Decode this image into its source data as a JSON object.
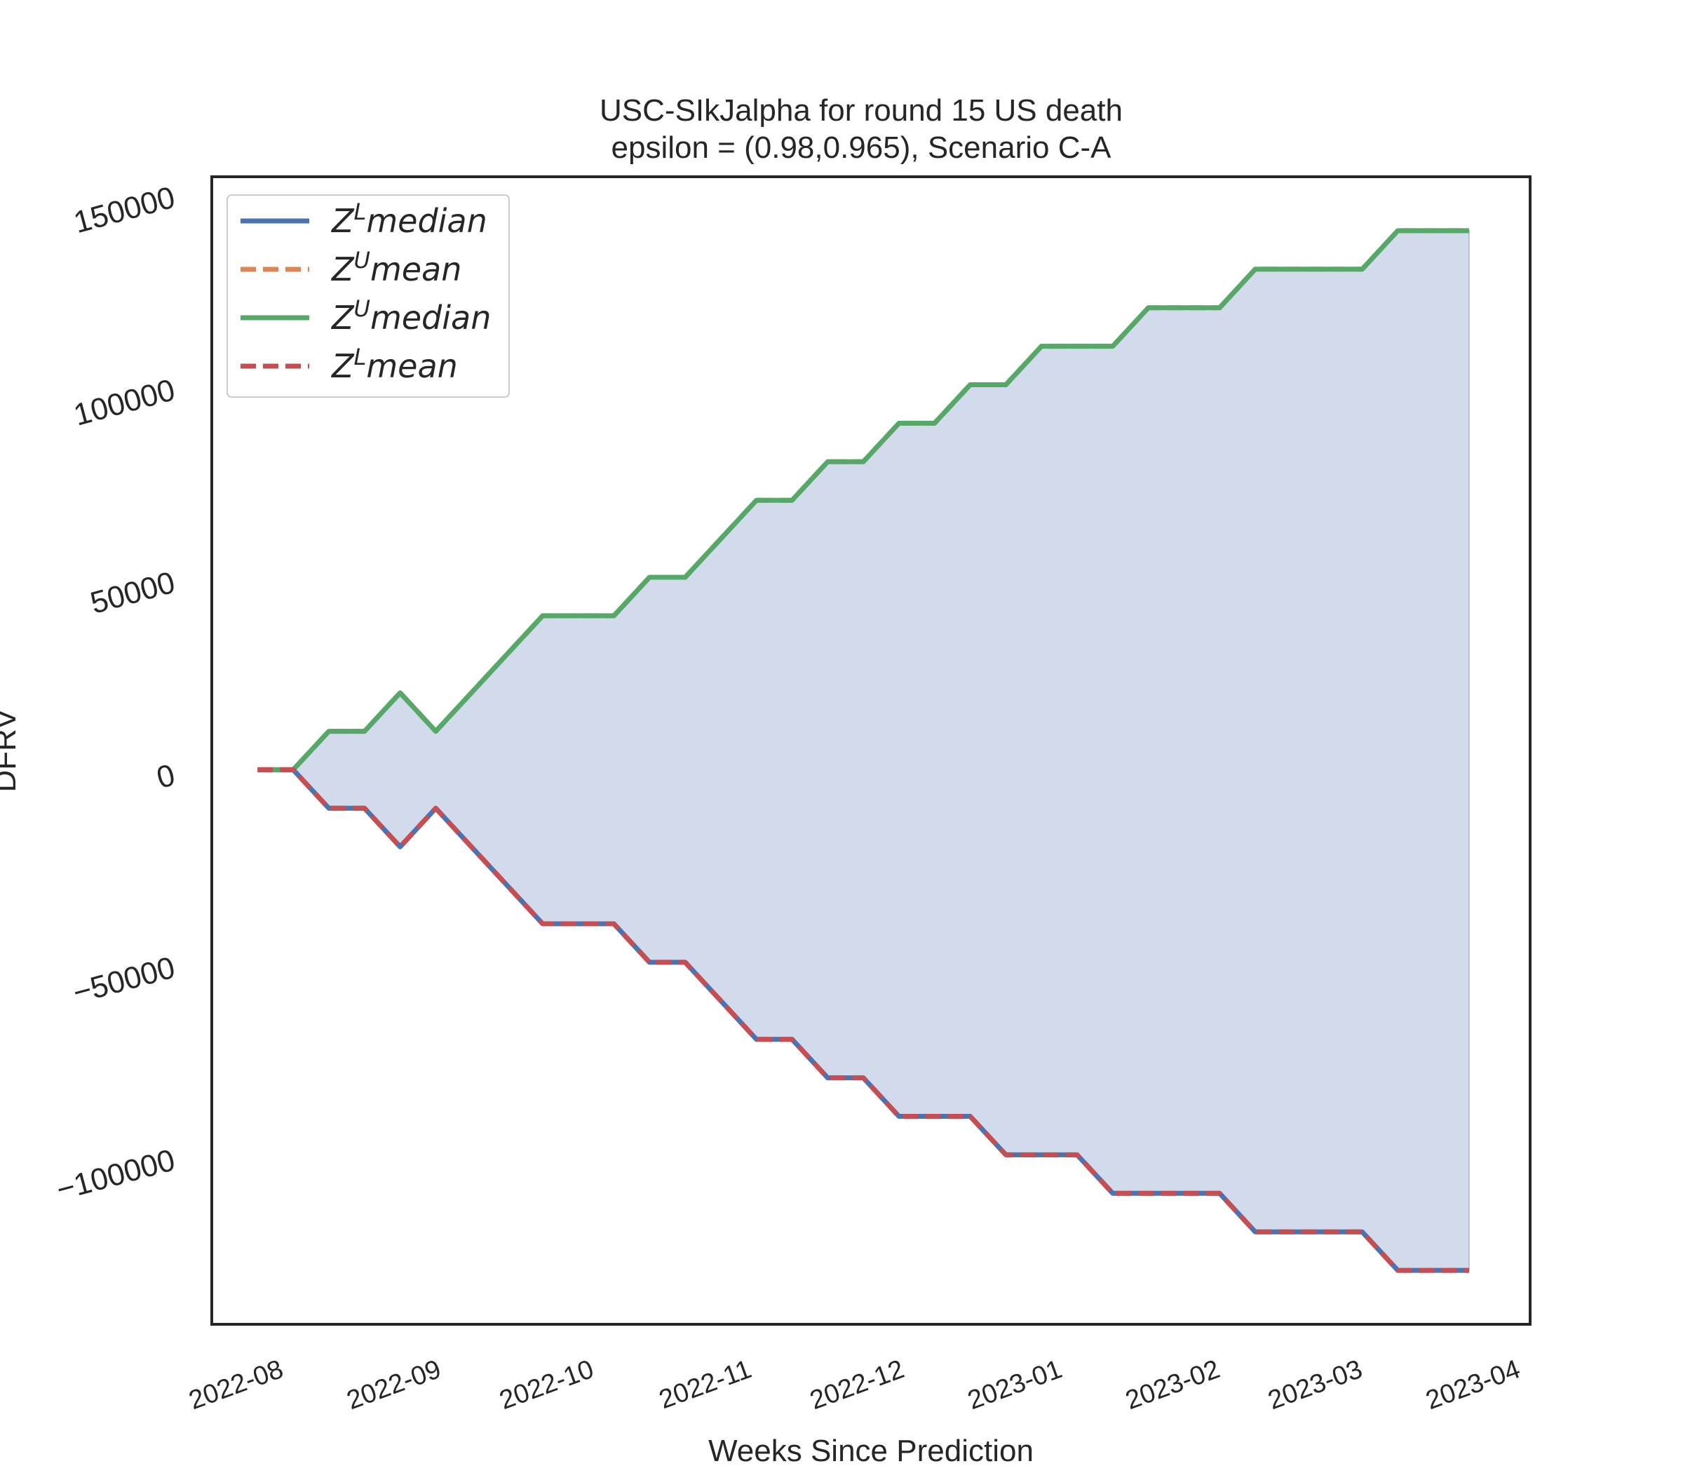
{
  "chart_data": {
    "type": "line",
    "title_line1": "USC-SIkJalpha for round 15 US  death",
    "title_line2": "epsilon = (0.98,0.965), Scenario C-A",
    "xlabel": "Weeks Since Prediction",
    "ylabel": "DFRV",
    "xlim": [
      "2022-07-19",
      "2023-04-04"
    ],
    "ylim": [
      -143000,
      155000
    ],
    "x_tick_labels": [
      "2022-08",
      "2022-09",
      "2022-10",
      "2022-11",
      "2022-12",
      "2023-01",
      "2023-02",
      "2023-03",
      "2023-04"
    ],
    "x_tick_dates": [
      "2022-08-01",
      "2022-09-01",
      "2022-10-01",
      "2022-11-01",
      "2022-12-01",
      "2023-01-01",
      "2023-02-01",
      "2023-03-01",
      "2023-04-01"
    ],
    "y_tick_values": [
      -100000,
      -50000,
      0,
      50000,
      100000,
      150000
    ],
    "y_tick_labels": [
      "−100000",
      "−50000",
      "0",
      "50000",
      "100000",
      "150000"
    ],
    "grid": false,
    "legend_position": "upper-left",
    "fill_between": {
      "upper": "Z^U median",
      "lower": "Z^L median",
      "color": "#d2dbeb"
    },
    "x": [
      "2022-07-28",
      "2022-08-04",
      "2022-08-11",
      "2022-08-18",
      "2022-08-25",
      "2022-09-01",
      "2022-09-08",
      "2022-09-15",
      "2022-09-22",
      "2022-09-29",
      "2022-10-06",
      "2022-10-13",
      "2022-10-20",
      "2022-10-27",
      "2022-11-03",
      "2022-11-10",
      "2022-11-17",
      "2022-11-24",
      "2022-12-01",
      "2022-12-08",
      "2022-12-15",
      "2022-12-22",
      "2022-12-29",
      "2023-01-05",
      "2023-01-12",
      "2023-01-19",
      "2023-01-26",
      "2023-02-02",
      "2023-02-09",
      "2023-02-16",
      "2023-02-23",
      "2023-03-02",
      "2023-03-09",
      "2023-03-16",
      "2023-03-23"
    ],
    "series": [
      {
        "name": "Z^L median",
        "legend_base": "Z",
        "legend_sup": "L",
        "legend_word": "median",
        "color": "#4c72b0",
        "dash": "solid",
        "values": [
          1000,
          1000,
          -9000,
          -9000,
          -19000,
          -9000,
          -19000,
          -29000,
          -39000,
          -39000,
          -39000,
          -49000,
          -49000,
          -59000,
          -69000,
          -69000,
          -79000,
          -79000,
          -89000,
          -89000,
          -89000,
          -99000,
          -99000,
          -99000,
          -109000,
          -109000,
          -109000,
          -109000,
          -119000,
          -119000,
          -119000,
          -119000,
          -129000,
          -129000,
          -129000
        ]
      },
      {
        "name": "Z^U mean",
        "legend_base": "Z",
        "legend_sup": "U",
        "legend_word": "mean",
        "color": "#dd8452",
        "dash": "dashed",
        "values": [
          1000,
          1000,
          11000,
          11000,
          21000,
          11000,
          21000,
          31000,
          41000,
          41000,
          41000,
          51000,
          51000,
          61000,
          71000,
          71000,
          81000,
          81000,
          91000,
          91000,
          101000,
          101000,
          111000,
          111000,
          111000,
          121000,
          121000,
          121000,
          131000,
          131000,
          131000,
          131000,
          141000,
          141000,
          141000
        ]
      },
      {
        "name": "Z^U median",
        "legend_base": "Z",
        "legend_sup": "U",
        "legend_word": "median",
        "color": "#55a868",
        "dash": "solid",
        "values": [
          1000,
          1000,
          11000,
          11000,
          21000,
          11000,
          21000,
          31000,
          41000,
          41000,
          41000,
          51000,
          51000,
          61000,
          71000,
          71000,
          81000,
          81000,
          91000,
          91000,
          101000,
          101000,
          111000,
          111000,
          111000,
          121000,
          121000,
          121000,
          131000,
          131000,
          131000,
          131000,
          141000,
          141000,
          141000
        ]
      },
      {
        "name": "Z^L mean",
        "legend_base": "Z",
        "legend_sup": "L",
        "legend_word": "mean",
        "color": "#c44e52",
        "dash": "dashed",
        "values": [
          1000,
          1000,
          -9000,
          -9000,
          -19000,
          -9000,
          -19000,
          -29000,
          -39000,
          -39000,
          -39000,
          -49000,
          -49000,
          -59000,
          -69000,
          -69000,
          -79000,
          -79000,
          -89000,
          -89000,
          -89000,
          -99000,
          -99000,
          -99000,
          -109000,
          -109000,
          -109000,
          -109000,
          -119000,
          -119000,
          -119000,
          -119000,
          -129000,
          -129000,
          -129000
        ]
      }
    ]
  }
}
